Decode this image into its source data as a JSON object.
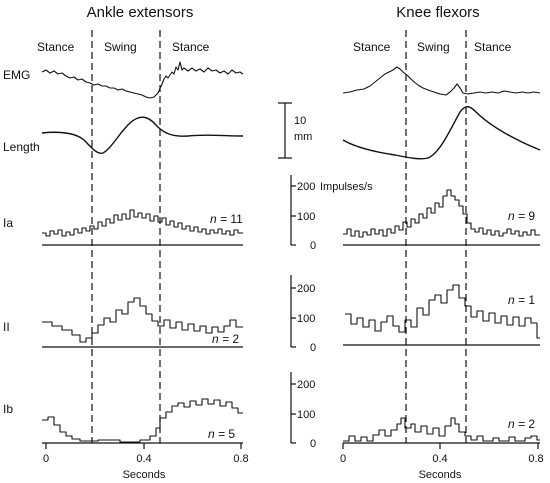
{
  "panels": [
    {
      "title": "Ankle extensors",
      "phases": [
        "Stance",
        "Swing",
        "Stance"
      ]
    },
    {
      "title": "Knee flexors",
      "phases": [
        "Stance",
        "Swing",
        "Stance"
      ]
    }
  ],
  "rows": [
    "EMG",
    "Length",
    "Ia",
    "II",
    "Ib"
  ],
  "n_labels": {
    "ankle": [
      "11",
      "2",
      "5"
    ],
    "knee": [
      "9",
      "1",
      "2"
    ]
  },
  "n_prefix": "n =",
  "scale_bar": {
    "value": "10",
    "unit": "mm"
  },
  "rate_axis": {
    "unit": "Impulses/s",
    "ticks": [
      "0",
      "100",
      "200"
    ]
  },
  "x_axis": {
    "label": "Seconds",
    "ticks": [
      "0",
      "0.4",
      "0.8"
    ]
  }
}
